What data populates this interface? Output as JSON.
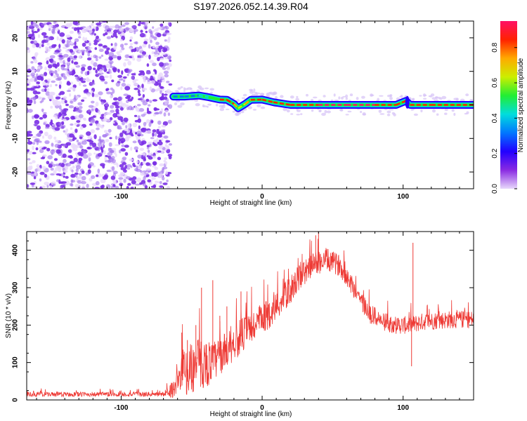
{
  "title": "S197.2026.052.14.39.R04",
  "colors": {
    "snr_line": "#ee3a35",
    "scatter_noise": "#7a2fe6",
    "colormap": [
      "#e8d8fb",
      "#8a2be2",
      "#2200ff",
      "#0077ff",
      "#00dddd",
      "#22ee33",
      "#ccee00",
      "#ffaa00",
      "#ff2200",
      "#ff1166"
    ]
  },
  "chart_data": [
    {
      "type": "heatmap",
      "name": "spectrogram",
      "xlabel": "Height of straight line (km)",
      "ylabel": "Frequency (Hz)",
      "xlim": [
        -167,
        150
      ],
      "ylim": [
        -25,
        25
      ],
      "xticks": [
        {
          "v": -100,
          "label": "-100"
        },
        {
          "v": 0,
          "label": "0"
        },
        {
          "v": 100,
          "label": "100"
        }
      ],
      "yticks": [
        {
          "v": -20,
          "label": "-20"
        },
        {
          "v": -10,
          "label": "-10"
        },
        {
          "v": 0,
          "label": "0"
        },
        {
          "v": 10,
          "label": "10"
        },
        {
          "v": 20,
          "label": "20"
        }
      ],
      "noise_region": {
        "from_km": -167,
        "to_km": -65,
        "freq_from": -25,
        "freq_to": 25
      },
      "signal_ridge": [
        {
          "x": -63,
          "f": 2.5,
          "a": 0.25
        },
        {
          "x": -55,
          "f": 2.5,
          "a": 0.3
        },
        {
          "x": -45,
          "f": 2.8,
          "a": 0.35
        },
        {
          "x": -38,
          "f": 2.3,
          "a": 0.45
        },
        {
          "x": -30,
          "f": 1.6,
          "a": 0.9
        },
        {
          "x": -25,
          "f": 1.5,
          "a": 0.92
        },
        {
          "x": -20,
          "f": 0.3,
          "a": 0.7
        },
        {
          "x": -17,
          "f": -1.0,
          "a": 0.65
        },
        {
          "x": -12,
          "f": 0.3,
          "a": 0.7
        },
        {
          "x": -8,
          "f": 1.5,
          "a": 0.88
        },
        {
          "x": 0,
          "f": 1.6,
          "a": 0.9
        },
        {
          "x": 8,
          "f": 0.8,
          "a": 0.9
        },
        {
          "x": 20,
          "f": 0.0,
          "a": 0.92
        },
        {
          "x": 40,
          "f": 0.0,
          "a": 0.95
        },
        {
          "x": 60,
          "f": 0.0,
          "a": 0.95
        },
        {
          "x": 80,
          "f": 0.0,
          "a": 0.93
        },
        {
          "x": 95,
          "f": 0.0,
          "a": 0.85
        },
        {
          "x": 102,
          "f": 1.2,
          "a": 0.3
        },
        {
          "x": 105,
          "f": 0.0,
          "a": 0.9
        },
        {
          "x": 120,
          "f": 0.0,
          "a": 0.93
        },
        {
          "x": 150,
          "f": 0.0,
          "a": 0.9
        }
      ],
      "colorbar": {
        "label": "Normalized spectral amplitude",
        "range": [
          0,
          0.95
        ],
        "ticks": [
          {
            "v": 0.0,
            "label": "0.0"
          },
          {
            "v": 0.2,
            "label": "0.2"
          },
          {
            "v": 0.4,
            "label": "0.4"
          },
          {
            "v": 0.6,
            "label": "0.6"
          },
          {
            "v": 0.8,
            "label": "0.8"
          }
        ]
      }
    },
    {
      "type": "line",
      "name": "snr",
      "xlabel": "Height of straight line (km)",
      "ylabel": "SNR (10 * v/v)",
      "xlim": [
        -167,
        150
      ],
      "ylim": [
        0,
        450
      ],
      "xticks": [
        {
          "v": -100,
          "label": "-100"
        },
        {
          "v": 0,
          "label": "0"
        },
        {
          "v": 100,
          "label": "100"
        }
      ],
      "yticks": [
        {
          "v": 0,
          "label": "0"
        },
        {
          "v": 100,
          "label": "100"
        },
        {
          "v": 200,
          "label": "200"
        },
        {
          "v": 300,
          "label": "300"
        },
        {
          "v": 400,
          "label": "400"
        }
      ],
      "envelope": [
        {
          "x": -167,
          "base": 15,
          "spread": 8
        },
        {
          "x": -70,
          "base": 15,
          "spread": 8
        },
        {
          "x": -63,
          "base": 30,
          "spread": 30
        },
        {
          "x": -55,
          "base": 75,
          "spread": 80
        },
        {
          "x": -45,
          "base": 95,
          "spread": 90
        },
        {
          "x": -35,
          "base": 100,
          "spread": 70
        },
        {
          "x": -25,
          "base": 135,
          "spread": 60
        },
        {
          "x": -15,
          "base": 170,
          "spread": 60
        },
        {
          "x": -5,
          "base": 200,
          "spread": 60
        },
        {
          "x": 5,
          "base": 230,
          "spread": 50
        },
        {
          "x": 15,
          "base": 270,
          "spread": 50
        },
        {
          "x": 25,
          "base": 320,
          "spread": 45
        },
        {
          "x": 35,
          "base": 360,
          "spread": 40
        },
        {
          "x": 45,
          "base": 375,
          "spread": 40
        },
        {
          "x": 55,
          "base": 360,
          "spread": 35
        },
        {
          "x": 65,
          "base": 300,
          "spread": 35
        },
        {
          "x": 75,
          "base": 235,
          "spread": 35
        },
        {
          "x": 85,
          "base": 210,
          "spread": 30
        },
        {
          "x": 95,
          "base": 200,
          "spread": 30
        },
        {
          "x": 105,
          "base": 200,
          "spread": 30
        },
        {
          "x": 115,
          "base": 210,
          "spread": 30
        },
        {
          "x": 135,
          "base": 215,
          "spread": 30
        },
        {
          "x": 150,
          "base": 215,
          "spread": 30
        }
      ],
      "spikes": [
        {
          "x": -57,
          "y": 180
        },
        {
          "x": -53,
          "y": 160
        },
        {
          "x": -47,
          "y": 200
        },
        {
          "x": -43,
          "y": 300
        },
        {
          "x": -35,
          "y": 320
        },
        {
          "x": -30,
          "y": 225
        },
        {
          "x": -25,
          "y": 250
        },
        {
          "x": -15,
          "y": 290
        },
        {
          "x": 38,
          "y": 440
        },
        {
          "x": 40,
          "y": 450
        },
        {
          "x": 107,
          "y": 420
        },
        {
          "x": 106,
          "y": 90
        }
      ]
    }
  ]
}
